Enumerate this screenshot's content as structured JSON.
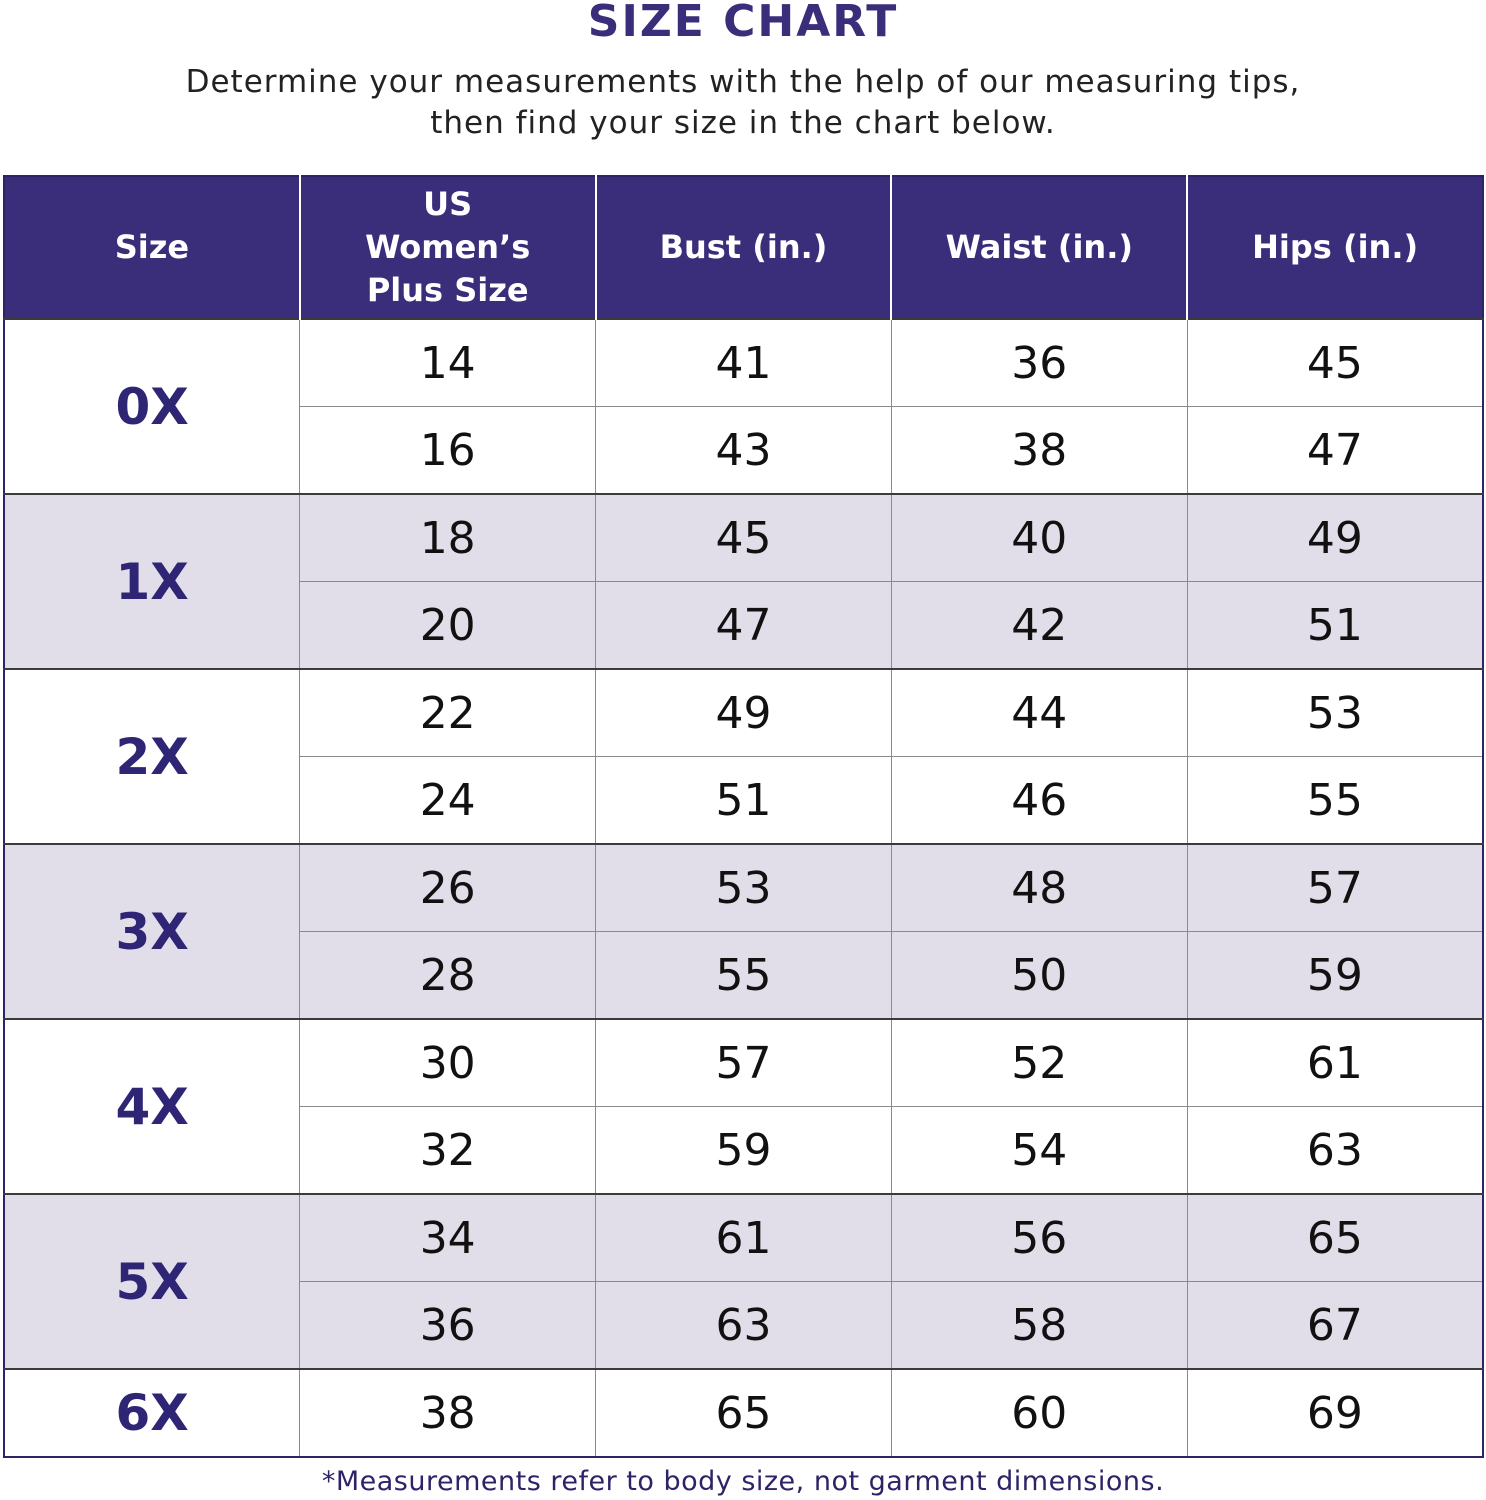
{
  "title": "SIZE CHART",
  "subtitle_line1": "Determine your measurements with the help of our measuring tips,",
  "subtitle_line2": "then find your size in the chart below.",
  "footnote": "*Measurements refer to body size, not garment dimensions.",
  "colors": {
    "header": "#3a2d7a",
    "shaded_row": "#e2dee9",
    "size_text": "#2f2575"
  },
  "chart_data": {
    "type": "table",
    "title": "SIZE CHART",
    "columns": [
      "Size",
      "US Women’s Plus Size",
      "Bust (in.)",
      "Waist (in.)",
      "Hips (in.)"
    ],
    "groups": [
      {
        "size": "0X",
        "rows": [
          [
            "14",
            "41",
            "36",
            "45"
          ],
          [
            "16",
            "43",
            "38",
            "47"
          ]
        ]
      },
      {
        "size": "1X",
        "rows": [
          [
            "18",
            "45",
            "40",
            "49"
          ],
          [
            "20",
            "47",
            "42",
            "51"
          ]
        ]
      },
      {
        "size": "2X",
        "rows": [
          [
            "22",
            "49",
            "44",
            "53"
          ],
          [
            "24",
            "51",
            "46",
            "55"
          ]
        ]
      },
      {
        "size": "3X",
        "rows": [
          [
            "26",
            "53",
            "48",
            "57"
          ],
          [
            "28",
            "55",
            "50",
            "59"
          ]
        ]
      },
      {
        "size": "4X",
        "rows": [
          [
            "30",
            "57",
            "52",
            "61"
          ],
          [
            "32",
            "59",
            "54",
            "63"
          ]
        ]
      },
      {
        "size": "5X",
        "rows": [
          [
            "34",
            "61",
            "56",
            "65"
          ],
          [
            "36",
            "63",
            "58",
            "67"
          ]
        ]
      },
      {
        "size": "6X",
        "rows": [
          [
            "38",
            "65",
            "60",
            "69"
          ]
        ]
      }
    ]
  }
}
